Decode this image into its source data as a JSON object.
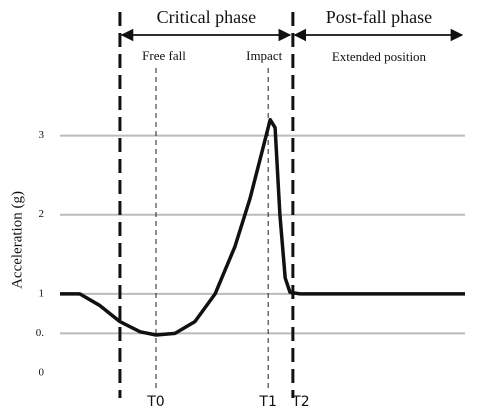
{
  "chart_data": {
    "type": "line",
    "ylabel": "Acceleration (g)",
    "x": [
      0,
      4.9,
      9.9,
      14.8,
      19.8,
      23.7,
      28.4,
      33.3,
      38.3,
      43.2,
      46.9,
      49.9,
      51.9,
      53.1,
      54.3,
      55.6,
      56.8,
      59.3,
      100
    ],
    "series": [
      {
        "color": "#111111",
        "values": [
          1.0,
          1.0,
          0.85,
          0.65,
          0.52,
          0.48,
          0.5,
          0.65,
          1.0,
          1.6,
          2.2,
          2.8,
          3.2,
          3.1,
          2.0,
          1.2,
          1.02,
          1.0,
          1.0
        ]
      }
    ],
    "xlim": [
      0,
      100
    ],
    "ylim": [
      0,
      3.5
    ],
    "yticks": [
      0,
      {
        "value": 0.5,
        "label": "0."
      },
      1,
      2,
      3
    ],
    "grid": true,
    "phases": [
      {
        "name": "Critical phase",
        "start": 14.8,
        "end": 57.5
      },
      {
        "name": "Post-fall phase",
        "start": 57.5,
        "end": 100,
        "note": "Extended position"
      }
    ],
    "markers": [
      {
        "label": "T0",
        "x": 23.7,
        "event": "Free fall"
      },
      {
        "label": "T1",
        "x": 51.4,
        "event": "Impact"
      },
      {
        "label": "T2",
        "x": 57.5
      }
    ]
  }
}
